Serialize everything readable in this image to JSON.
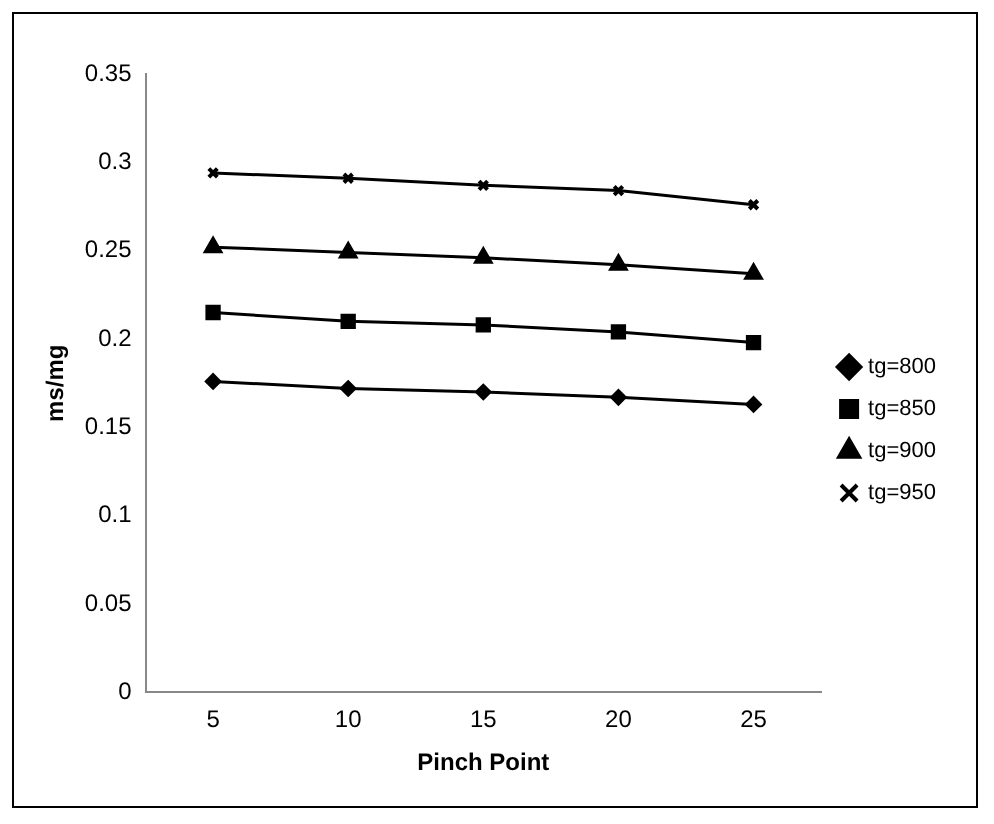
{
  "chart_data": {
    "type": "line",
    "xlabel": "Pinch Point",
    "ylabel": "ms/mg",
    "categories": [
      "5",
      "10",
      "15",
      "20",
      "25"
    ],
    "ylim": [
      0,
      0.35
    ],
    "yticks": [
      0,
      0.05,
      0.1,
      0.15,
      0.2,
      0.25,
      0.3,
      0.35
    ],
    "grid": false,
    "legend": "right",
    "line_style": "solid",
    "series": [
      {
        "name": "tg=800",
        "color": "#000000",
        "marker": "diamond",
        "values": [
          0.176,
          0.172,
          0.17,
          0.167,
          0.163
        ]
      },
      {
        "name": "tg=850",
        "color": "#000000",
        "marker": "square",
        "values": [
          0.215,
          0.21,
          0.208,
          0.204,
          0.198
        ]
      },
      {
        "name": "tg=900",
        "color": "#000000",
        "marker": "triangle",
        "values": [
          0.252,
          0.249,
          0.246,
          0.242,
          0.237
        ]
      },
      {
        "name": "tg=950",
        "color": "#000000",
        "marker": "cross",
        "values": [
          0.294,
          0.291,
          0.287,
          0.284,
          0.276
        ]
      }
    ]
  }
}
